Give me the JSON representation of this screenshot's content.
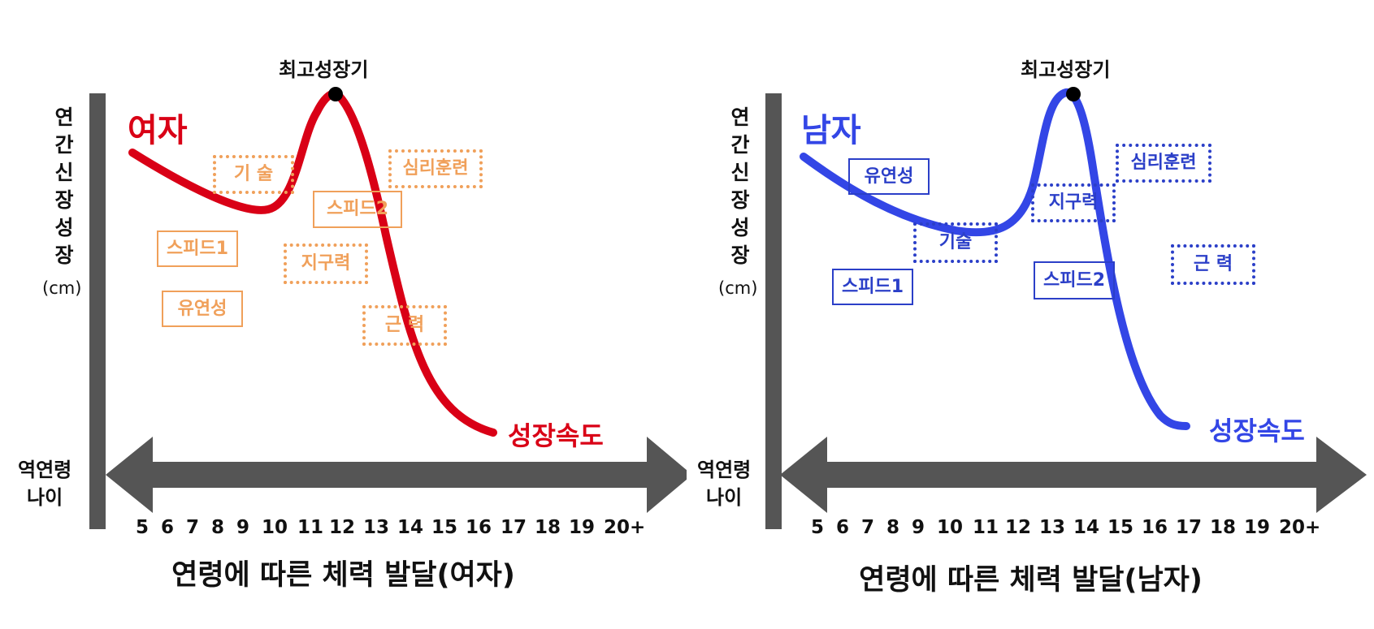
{
  "colors": {
    "female": "#d90016",
    "male": "#3346e6",
    "female_box": "#f0a05a",
    "male_box": "#2b3fc8",
    "axis": "#555555"
  },
  "panels": [
    {
      "key": "female",
      "peak_label": "최고성장기",
      "gender_label": "여자",
      "y_label_chars": [
        "연",
        "간",
        "신",
        "장",
        "성",
        "장"
      ],
      "y_unit": "(cm)",
      "age_label_line1": "역연령",
      "age_label_line2": "나이",
      "ticks": [
        "5",
        "6",
        "7",
        "8",
        "9",
        "10",
        "11",
        "12",
        "13",
        "14",
        "15",
        "16",
        "17",
        "18",
        "19",
        "20+"
      ],
      "speed_label": "성장속도",
      "caption": "연령에 따른 체력 발달(여자)",
      "boxes": [
        {
          "label": "기 술",
          "style": "dotted"
        },
        {
          "label": "심리훈련",
          "style": "dotted"
        },
        {
          "label": "스피드2",
          "style": "solid"
        },
        {
          "label": "스피드1",
          "style": "solid"
        },
        {
          "label": "지구력",
          "style": "dotted"
        },
        {
          "label": "유연성",
          "style": "solid"
        },
        {
          "label": "근 력",
          "style": "dotted"
        }
      ]
    },
    {
      "key": "male",
      "peak_label": "최고성장기",
      "gender_label": "남자",
      "y_label_chars": [
        "연",
        "간",
        "신",
        "장",
        "성",
        "장"
      ],
      "y_unit": "(cm)",
      "age_label_line1": "역연령",
      "age_label_line2": "나이",
      "ticks": [
        "5",
        "6",
        "7",
        "8",
        "9",
        "10",
        "11",
        "12",
        "13",
        "14",
        "15",
        "16",
        "17",
        "18",
        "19",
        "20+"
      ],
      "speed_label": "성장속도",
      "caption": "연령에 따른 체력 발달(남자)",
      "boxes": [
        {
          "label": "유연성",
          "style": "solid"
        },
        {
          "label": "심리훈련",
          "style": "dotted"
        },
        {
          "label": "지구력",
          "style": "dotted"
        },
        {
          "label": "기술",
          "style": "dotted"
        },
        {
          "label": "스피드1",
          "style": "solid"
        },
        {
          "label": "스피드2",
          "style": "solid"
        },
        {
          "label": "근 력",
          "style": "dotted"
        }
      ]
    }
  ]
}
